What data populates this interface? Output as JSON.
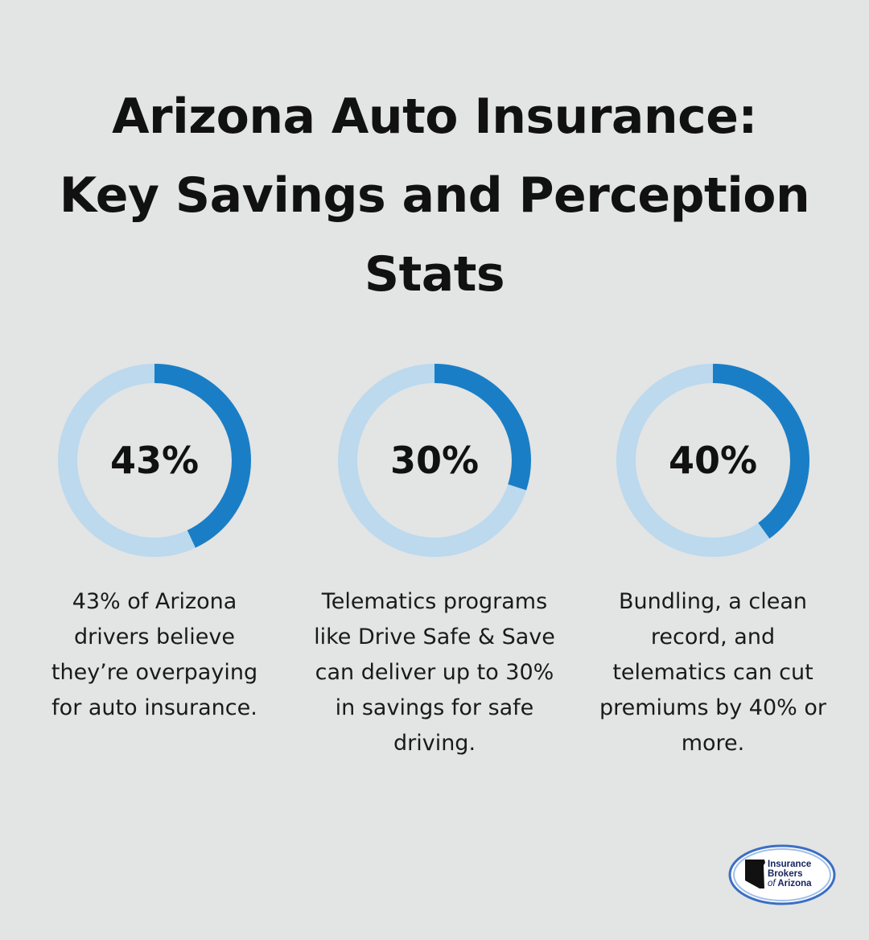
{
  "title": {
    "line1": "Arizona Auto Insurance:",
    "line2": "Key Savings and Perception",
    "line3": "Stats"
  },
  "colors": {
    "background": "#e3e4e4",
    "ring_track": "#bcd9ee",
    "ring_fill": "#1a7ec6"
  },
  "chart_data": {
    "type": "pie",
    "variant": "donut",
    "values": [
      43,
      30,
      40
    ],
    "labels": [
      "43%",
      "30%",
      "40%"
    ],
    "descriptions": [
      "43% of Arizona drivers believe they’re overpaying for auto insurance.",
      "Telematics programs like Drive Safe & Save can deliver up to 30% in savings for safe driving.",
      "Bundling, a clean record, and telematics can cut premiums by 40% or more."
    ]
  },
  "logo": {
    "line1": "Insurance",
    "line2": "Brokers",
    "line3_prefix": "of",
    "line3": "Arizona"
  }
}
